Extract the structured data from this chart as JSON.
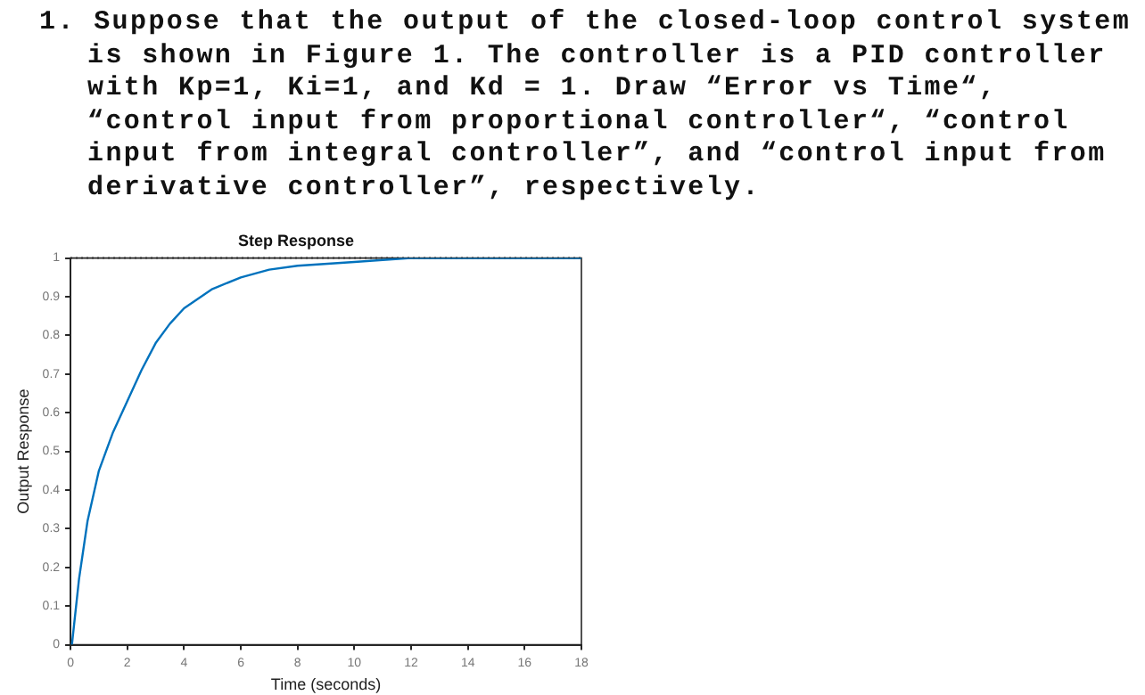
{
  "chart_data": {
    "type": "line",
    "title": "Step Response",
    "xlabel": "Time (seconds)",
    "ylabel": "Output Response",
    "annotations": [
      "1. Suppose that the output of the closed-loop control system is shown in Figure 1. The controller is a PID controller with Kp=1, Ki=1, and Kd = 1.  Draw “Error vs Time“, “control input from proportional controller“, “control input from integral controller”, and “control input from derivative controller”, respectively."
    ],
    "x": [
      0.05,
      0.3,
      0.6,
      1,
      1.5,
      2,
      2.5,
      3,
      3.5,
      4,
      5,
      6,
      7,
      8,
      10,
      12,
      14,
      16,
      18
    ],
    "series": [
      {
        "color": "#0072bd",
        "values": [
          0,
          0.17,
          0.32,
          0.45,
          0.55,
          0.63,
          0.71,
          0.78,
          0.83,
          0.87,
          0.92,
          0.95,
          0.97,
          0.98,
          0.99,
          1,
          1,
          1,
          1
        ]
      }
    ],
    "xlim": [
      0,
      18
    ],
    "xticks": [
      0,
      2,
      4,
      6,
      8,
      10,
      12,
      14,
      16,
      18
    ],
    "ylim": [
      0,
      1
    ],
    "yticks": [
      0,
      0.1,
      0.2,
      0.3,
      0.4,
      0.5,
      0.6,
      0.7,
      0.8,
      0.9,
      1
    ],
    "ref_lines": [
      {
        "axis": "y",
        "value": 1,
        "color": "#404040",
        "line_style": "dotted"
      }
    ],
    "grid": false,
    "legend": false,
    "marker": "none",
    "line_style": "solid"
  }
}
